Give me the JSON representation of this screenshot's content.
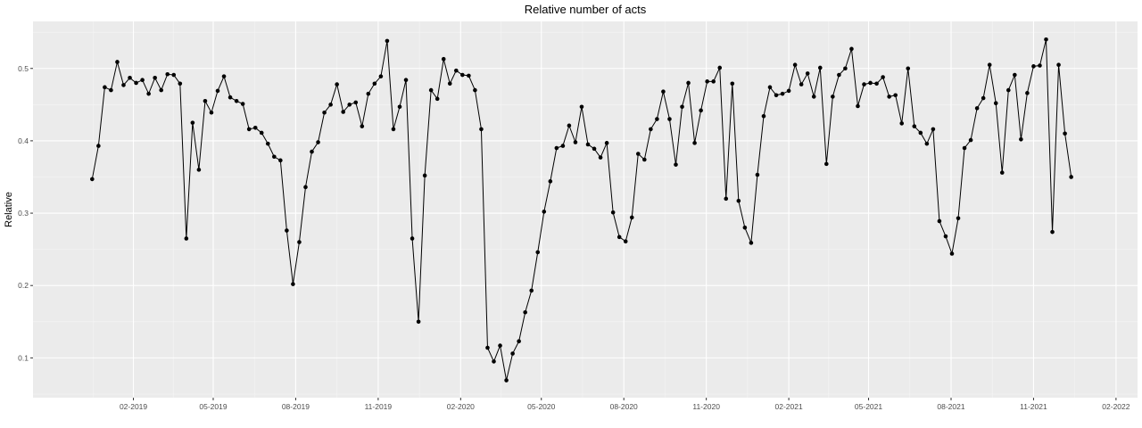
{
  "chart_data": {
    "type": "line",
    "title": "Relative number of acts",
    "xlabel": "",
    "ylabel": "Relative",
    "ylim": [
      0.045,
      0.565
    ],
    "xlim": [
      "2018-10-12",
      "2022-02-25"
    ],
    "y_ticks": [
      0.1,
      0.2,
      0.3,
      0.4,
      0.5
    ],
    "y_tick_labels": [
      "0.1",
      "0.2",
      "0.3",
      "0.4",
      "0.5"
    ],
    "x_ticks": [
      "2019-02-01",
      "2019-05-01",
      "2019-08-01",
      "2019-11-01",
      "2020-02-01",
      "2020-05-01",
      "2020-08-01",
      "2020-11-01",
      "2021-02-01",
      "2021-05-01",
      "2021-08-01",
      "2021-11-01",
      "2022-02-01"
    ],
    "x_tick_labels": [
      "02-2019",
      "05-2019",
      "08-2019",
      "11-2019",
      "02-2020",
      "05-2020",
      "08-2020",
      "11-2020",
      "02-2021",
      "05-2021",
      "08-2021",
      "11-2021",
      "02-2022"
    ],
    "grid": true,
    "start_date": "2018-12-17",
    "step_days": 7,
    "values": [
      0.347,
      0.393,
      0.474,
      0.47,
      0.509,
      0.477,
      0.487,
      0.48,
      0.484,
      0.465,
      0.487,
      0.47,
      0.492,
      0.491,
      0.479,
      0.265,
      0.425,
      0.36,
      0.455,
      0.439,
      0.469,
      0.489,
      0.46,
      0.455,
      0.451,
      0.416,
      0.418,
      0.411,
      0.396,
      0.378,
      0.373,
      0.276,
      0.202,
      0.26,
      0.336,
      0.385,
      0.398,
      0.439,
      0.45,
      0.478,
      0.44,
      0.45,
      0.453,
      0.42,
      0.465,
      0.479,
      0.489,
      0.538,
      0.416,
      0.447,
      0.484,
      0.265,
      0.15,
      0.352,
      0.47,
      0.458,
      0.513,
      0.479,
      0.497,
      0.491,
      0.49,
      0.47,
      0.416,
      0.114,
      0.095,
      0.117,
      0.069,
      0.106,
      0.123,
      0.163,
      0.193,
      0.246,
      0.302,
      0.344,
      0.39,
      0.393,
      0.421,
      0.398,
      0.447,
      0.395,
      0.389,
      0.377,
      0.397,
      0.301,
      0.267,
      0.261,
      0.294,
      0.382,
      0.374,
      0.416,
      0.43,
      0.468,
      0.43,
      0.367,
      0.447,
      0.48,
      0.397,
      0.442,
      0.482,
      0.482,
      0.501,
      0.32,
      0.479,
      0.317,
      0.28,
      0.259,
      0.353,
      0.434,
      0.474,
      0.463,
      0.465,
      0.469,
      0.505,
      0.478,
      0.493,
      0.461,
      0.501,
      0.368,
      0.461,
      0.491,
      0.5,
      0.527,
      0.448,
      0.478,
      0.48,
      0.479,
      0.488,
      0.461,
      0.463,
      0.424,
      0.5,
      0.42,
      0.411,
      0.396,
      0.416,
      0.289,
      0.268,
      0.244,
      0.293,
      0.39,
      0.401,
      0.445,
      0.459,
      0.505,
      0.452,
      0.356,
      0.47,
      0.491,
      0.402,
      0.466,
      0.503,
      0.504,
      0.54,
      0.274,
      0.505,
      0.41,
      0.35
    ]
  }
}
